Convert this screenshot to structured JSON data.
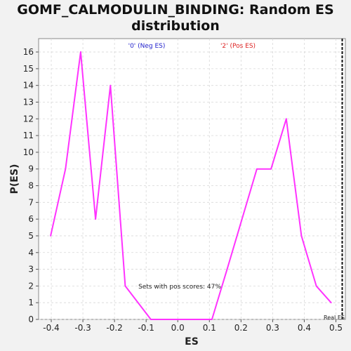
{
  "chart_data": {
    "type": "line",
    "title": "GOMF_CALMODULIN_BINDING: Random ES distribution",
    "title_lines": [
      "GOMF_CALMODULIN_BINDING: Random ES",
      "distribution"
    ],
    "xlabel": "ES",
    "ylabel": "P(ES)",
    "xlim": [
      -0.44,
      0.53
    ],
    "ylim": [
      0,
      16.8
    ],
    "xticks": [
      "-0.4",
      "-0.3",
      "-0.2",
      "-0.1",
      "0.0",
      "0.1",
      "0.2",
      "0.3",
      "0.4",
      "0.5"
    ],
    "xtick_values": [
      -0.4,
      -0.3,
      -0.2,
      -0.1,
      0.0,
      0.1,
      0.2,
      0.3,
      0.4,
      0.5
    ],
    "yticks": [
      "0",
      "1",
      "2",
      "3",
      "4",
      "5",
      "6",
      "7",
      "8",
      "9",
      "10",
      "11",
      "12",
      "13",
      "14",
      "15",
      "16"
    ],
    "ytick_values": [
      0,
      1,
      2,
      3,
      4,
      5,
      6,
      7,
      8,
      9,
      10,
      11,
      12,
      13,
      14,
      15,
      16
    ],
    "grid": true,
    "series": [
      {
        "color": "#ff33ff",
        "x": [
          -0.402,
          -0.355,
          -0.307,
          -0.26,
          -0.213,
          -0.166,
          -0.085,
          0.002,
          0.108,
          0.156,
          0.25,
          0.295,
          0.343,
          0.391,
          0.438,
          0.485
        ],
        "y": [
          5,
          9,
          16,
          6,
          14,
          2,
          0,
          0,
          0,
          3,
          9,
          9,
          12,
          5,
          2,
          1
        ]
      }
    ],
    "legend": [
      {
        "text": "'0' (Neg ES)",
        "color": "#2222cc"
      },
      {
        "text": "'2' (Pos ES)",
        "color": "#dd2222"
      }
    ],
    "annotations": {
      "pos_scores": "Sets with pos scores: 47%",
      "real_es_label": "Real ES",
      "real_es_x": 0.52
    }
  }
}
